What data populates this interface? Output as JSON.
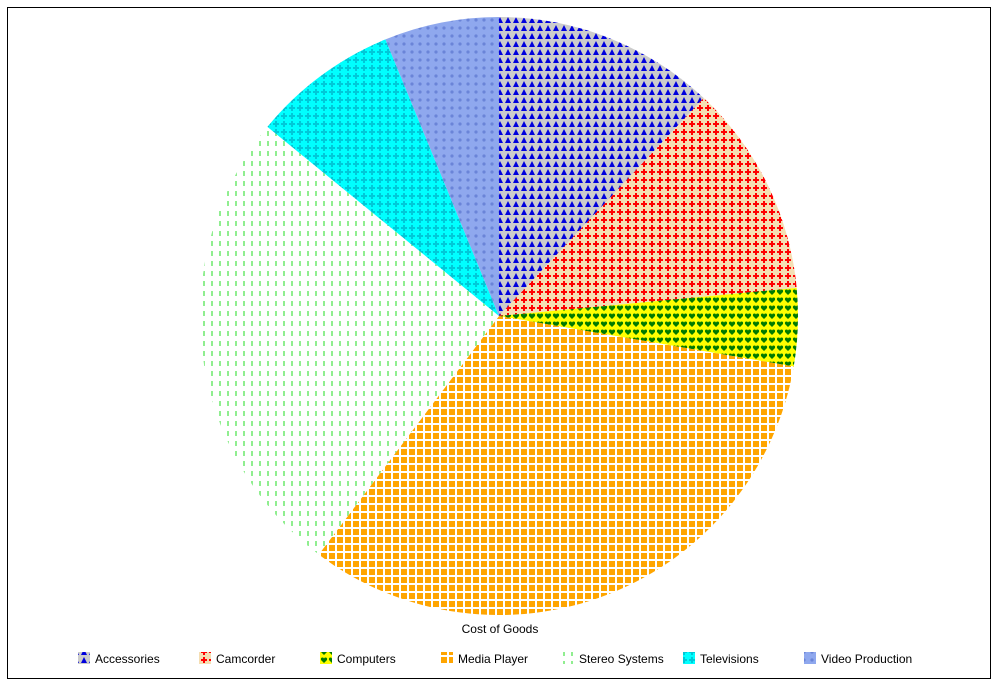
{
  "chart_data": {
    "type": "pie",
    "xlabel": "Cost of Goods",
    "legend_position": "bottom",
    "series": [
      {
        "name": "Accessories",
        "value": 12.0,
        "background": "#cccccc",
        "mark_color": "#0000dd",
        "pattern": "triangle"
      },
      {
        "name": "Camcorder",
        "value": 11.5,
        "background": "#f5deb3",
        "mark_color": "#ff0000",
        "pattern": "cross"
      },
      {
        "name": "Computers",
        "value": 4.2,
        "background": "#ffff00",
        "mark_color": "#007a00",
        "pattern": "heart"
      },
      {
        "name": "Media Player",
        "value": 32.6,
        "background": "#ffffff",
        "mark_color": "#ffa500",
        "pattern": "square"
      },
      {
        "name": "Stereo Systems",
        "value": 25.6,
        "background": "#ffffff",
        "mark_color": "#90ee90",
        "pattern": "dash"
      },
      {
        "name": "Televisions",
        "value": 7.9,
        "background": "#00ffff",
        "mark_color": "#00c8d8",
        "pattern": "star"
      },
      {
        "name": "Video Production",
        "value": 6.2,
        "background": "#8fa8ee",
        "mark_color": "#6a84d8",
        "pattern": "dot"
      }
    ]
  }
}
